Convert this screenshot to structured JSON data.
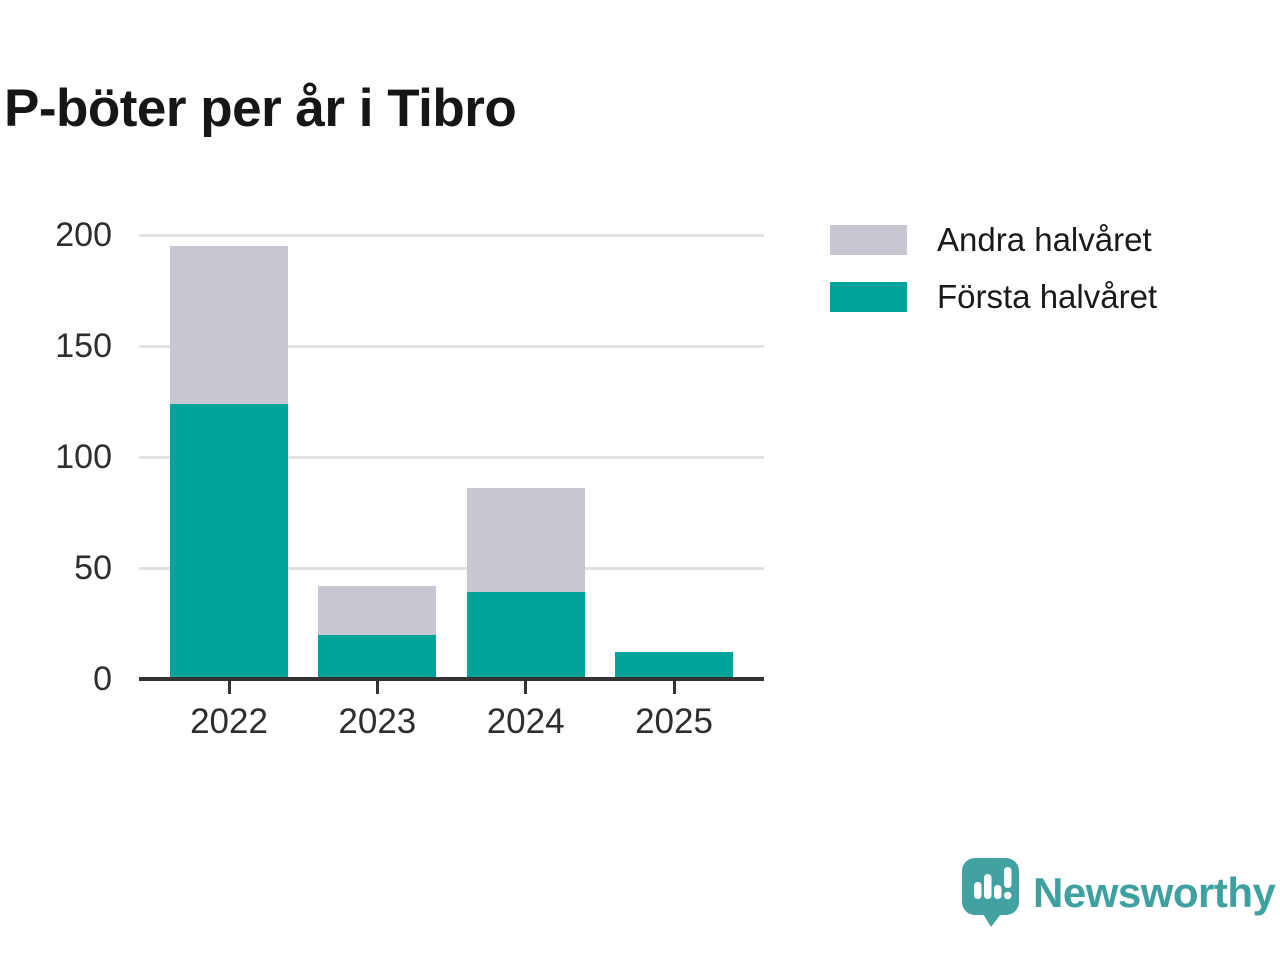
{
  "title": "P-böter per år i Tibro",
  "chart_data": {
    "type": "bar",
    "stacked": true,
    "title": "P-böter per år i Tibro",
    "categories": [
      "2022",
      "2023",
      "2024",
      "2025"
    ],
    "series": [
      {
        "name": "Första halvåret",
        "color": "#00a49a",
        "values": [
          124,
          20,
          39,
          12
        ]
      },
      {
        "name": "Andra halvåret",
        "color": "#c8c6d0",
        "values": [
          71,
          22,
          47,
          0
        ]
      }
    ],
    "totals": [
      195,
      42,
      86,
      12
    ],
    "xlabel": "",
    "ylabel": "",
    "ylim": [
      0,
      200
    ],
    "yticks": [
      0,
      50,
      100,
      150,
      200
    ],
    "grid": "horizontal",
    "legend_position": "top-right"
  },
  "legend": {
    "items": [
      {
        "label": "Andra halvåret",
        "color": "#c8c6d0"
      },
      {
        "label": "Första halvåret",
        "color": "#00a49a"
      }
    ]
  },
  "branding": {
    "name": "Newsworthy",
    "text_color": "#3fa0a0",
    "mark_color": "#42a2a2"
  }
}
